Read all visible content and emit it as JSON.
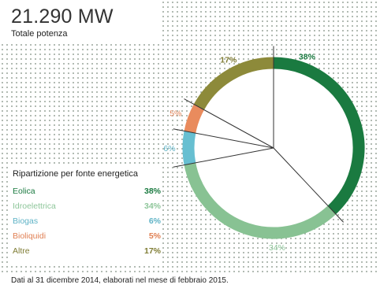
{
  "header": {
    "total": "21.290 MW",
    "subtitle": "Totale potenza"
  },
  "chart_data": {
    "type": "pie",
    "style": "donut",
    "unit": "%",
    "categories": [
      "Eolica",
      "Idroelettrica",
      "Biogas",
      "Bioliquidi",
      "Altre"
    ],
    "values": [
      38,
      34,
      6,
      5,
      17
    ],
    "labels": [
      "38%",
      "34%",
      "6%",
      "5%",
      "17%"
    ],
    "colors": [
      "#1a7a40",
      "#88c293",
      "#67bfd1",
      "#e98b5d",
      "#8d8a3a"
    ],
    "label_colors": [
      "#1a7a40",
      "#8ec69a",
      "#5fb3c6",
      "#e07f52",
      "#7f7c34"
    ],
    "start": "12 o'clock",
    "direction": "clockwise"
  },
  "legend": {
    "title": "Ripartizione per fonte energetica",
    "items": [
      {
        "name": "Eolica",
        "value": "38%"
      },
      {
        "name": "Idroelettrica",
        "value": "34%"
      },
      {
        "name": "Biogas",
        "value": "6%"
      },
      {
        "name": "Bioliquidi",
        "value": "5%"
      },
      {
        "name": "Altre",
        "value": "17%"
      }
    ]
  },
  "footnote": "Dati al 31 dicembre 2014, elaborati nel mese di febbraio 2015."
}
